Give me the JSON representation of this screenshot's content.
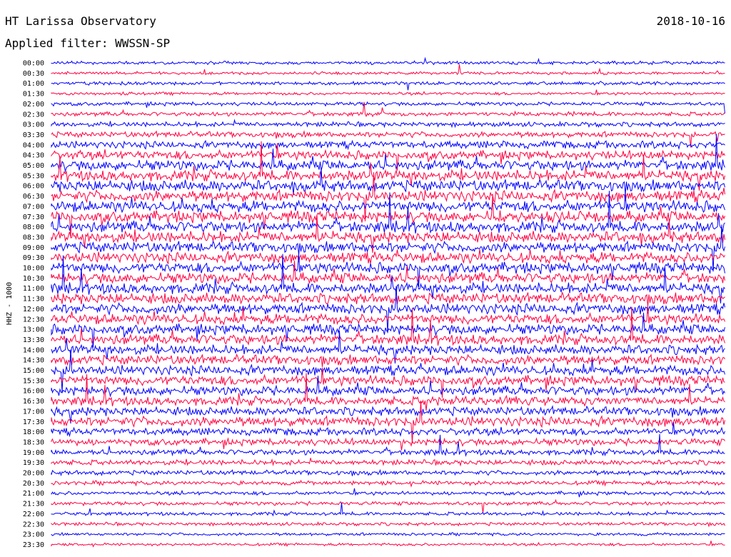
{
  "header": {
    "station": "HT Larissa Observatory",
    "date": "2018-10-16",
    "filter": "Applied filter: WWSSN-SP"
  },
  "chart_data": {
    "type": "line",
    "title": "HT Larissa Observatory",
    "ylabel": "HHZ - 1000",
    "row_labels": [
      "00:00",
      "00:30",
      "01:00",
      "01:30",
      "02:00",
      "02:30",
      "03:00",
      "03:30",
      "04:00",
      "04:30",
      "05:00",
      "05:30",
      "06:00",
      "06:30",
      "07:00",
      "07:30",
      "08:00",
      "08:30",
      "09:00",
      "09:30",
      "10:00",
      "10:30",
      "11:00",
      "11:30",
      "12:00",
      "12:30",
      "13:00",
      "13:30",
      "14:00",
      "14:30",
      "15:00",
      "15:30",
      "16:00",
      "16:30",
      "17:00",
      "17:30",
      "18:00",
      "18:30",
      "19:00",
      "19:30",
      "20:00",
      "20:30",
      "21:00",
      "21:30",
      "22:00",
      "22:30",
      "23:00",
      "23:30"
    ],
    "row_colors": [
      "#0000ff",
      "#ff0040"
    ],
    "row_amplitude": [
      0.15,
      0.12,
      0.15,
      0.12,
      0.2,
      0.25,
      0.3,
      0.4,
      0.55,
      0.7,
      0.85,
      0.9,
      0.95,
      0.95,
      0.95,
      0.95,
      0.95,
      0.95,
      0.9,
      0.9,
      0.9,
      0.9,
      0.9,
      0.9,
      0.9,
      0.85,
      0.85,
      0.85,
      0.8,
      0.8,
      0.8,
      0.8,
      0.75,
      0.7,
      0.7,
      0.8,
      0.55,
      0.5,
      0.4,
      0.35,
      0.3,
      0.25,
      0.2,
      0.2,
      0.18,
      0.15,
      0.12,
      0.1
    ],
    "grid": false
  }
}
